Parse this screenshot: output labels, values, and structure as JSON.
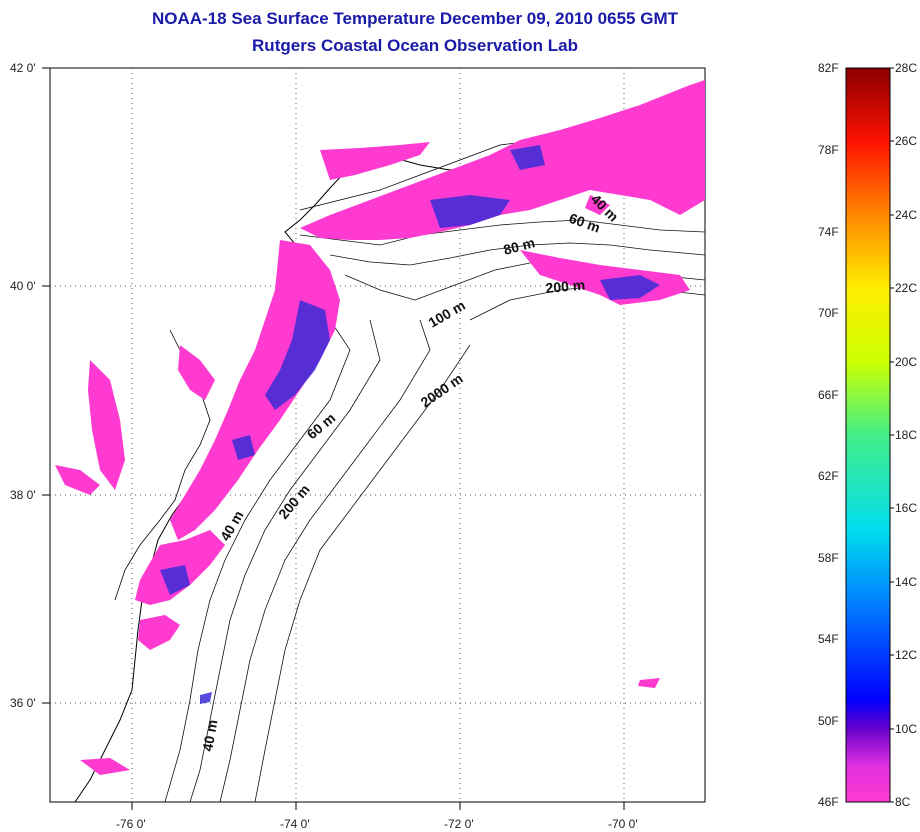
{
  "header": {
    "title": "NOAA-18 Sea Surface Temperature December 09, 2010 0655 GMT",
    "subtitle": "Rutgers Coastal Ocean Observation Lab"
  },
  "map": {
    "lat_labels": [
      "42 0'",
      "40 0'",
      "38 0'",
      "36 0'"
    ],
    "lon_labels": [
      "-76 0'",
      "-74 0'",
      "-72 0'",
      "-70 0'"
    ],
    "contours": {
      "c40a": "40 m",
      "c60a": "60 m",
      "c80": "80 m",
      "c200a": "200 m",
      "c100": "100 m",
      "c2000": "2000 m",
      "c60b": "60 m",
      "c200b": "200 m",
      "c40b": "40 m",
      "c40c": "40 m"
    },
    "colors": {
      "sst_warm": "#ff3ad0",
      "sst_cool": "#3a2bd6",
      "land": "#ffffff"
    }
  },
  "colorbar": {
    "f_labels": [
      "82F",
      "78F",
      "74F",
      "70F",
      "66F",
      "62F",
      "58F",
      "54F",
      "50F",
      "46F"
    ],
    "c_labels": [
      "28C",
      "26C",
      "24C",
      "22C",
      "20C",
      "18C",
      "16C",
      "14C",
      "12C",
      "10C",
      "8C"
    ],
    "stops": [
      "#ff3ad0",
      "#cc33dd",
      "#0000ff",
      "#0077ff",
      "#00ccff",
      "#00ffcc",
      "#44ff44",
      "#bbff00",
      "#ffff00",
      "#ffbb00",
      "#ff6600",
      "#ff0000",
      "#aa0000",
      "#800000"
    ]
  }
}
